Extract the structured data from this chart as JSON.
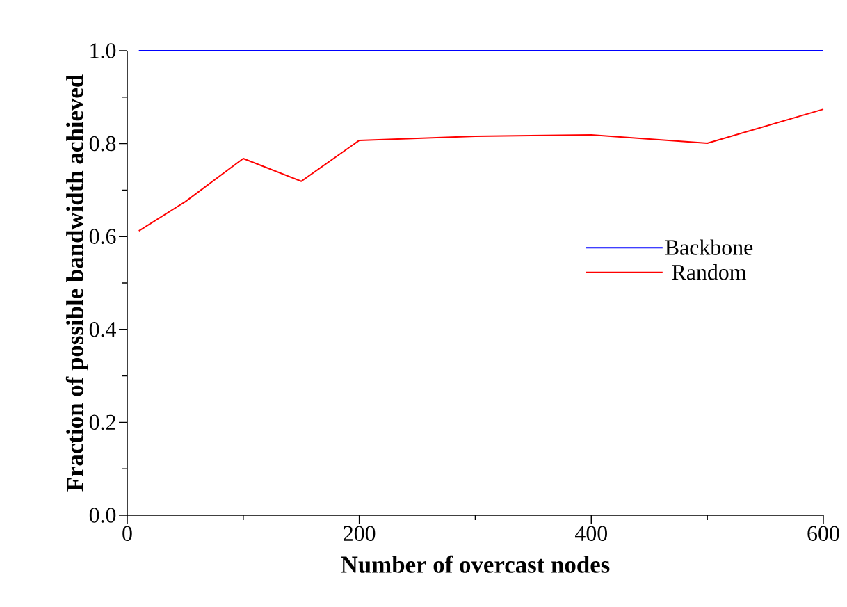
{
  "chart_data": {
    "type": "line",
    "xlabel": "Number of overcast nodes",
    "ylabel": "Fraction of possible bandwidth achieved",
    "x": [
      10,
      50,
      100,
      150,
      200,
      300,
      400,
      500,
      600
    ],
    "series": [
      {
        "name": "Backbone",
        "color": "#0000ff",
        "values": [
          1.0,
          1.0,
          1.0,
          1.0,
          1.0,
          1.0,
          1.0,
          1.0,
          1.0
        ]
      },
      {
        "name": "Random",
        "color": "#ff0000",
        "values": [
          0.612,
          0.675,
          0.768,
          0.719,
          0.807,
          0.816,
          0.819,
          0.801,
          0.874
        ]
      }
    ],
    "xlim": [
      0,
      600
    ],
    "ylim": [
      0,
      1
    ],
    "xticks": [
      0,
      {
        "value": 100,
        "label": null
      },
      200,
      {
        "value": 300,
        "label": null
      },
      400,
      {
        "value": 500,
        "label": null
      },
      600
    ],
    "yticks": [
      {
        "value": 0,
        "label": "0.0"
      },
      {
        "value": 0.1,
        "label": null
      },
      0.2,
      {
        "value": 0.3,
        "label": null
      },
      0.4,
      {
        "value": 0.5,
        "label": null
      },
      0.6,
      {
        "value": 0.7,
        "label": null
      },
      0.8,
      {
        "value": 0.9,
        "label": null
      },
      {
        "value": 1,
        "label": "1.0"
      }
    ],
    "legend": "right",
    "marker": "none",
    "line_style": "solid"
  }
}
